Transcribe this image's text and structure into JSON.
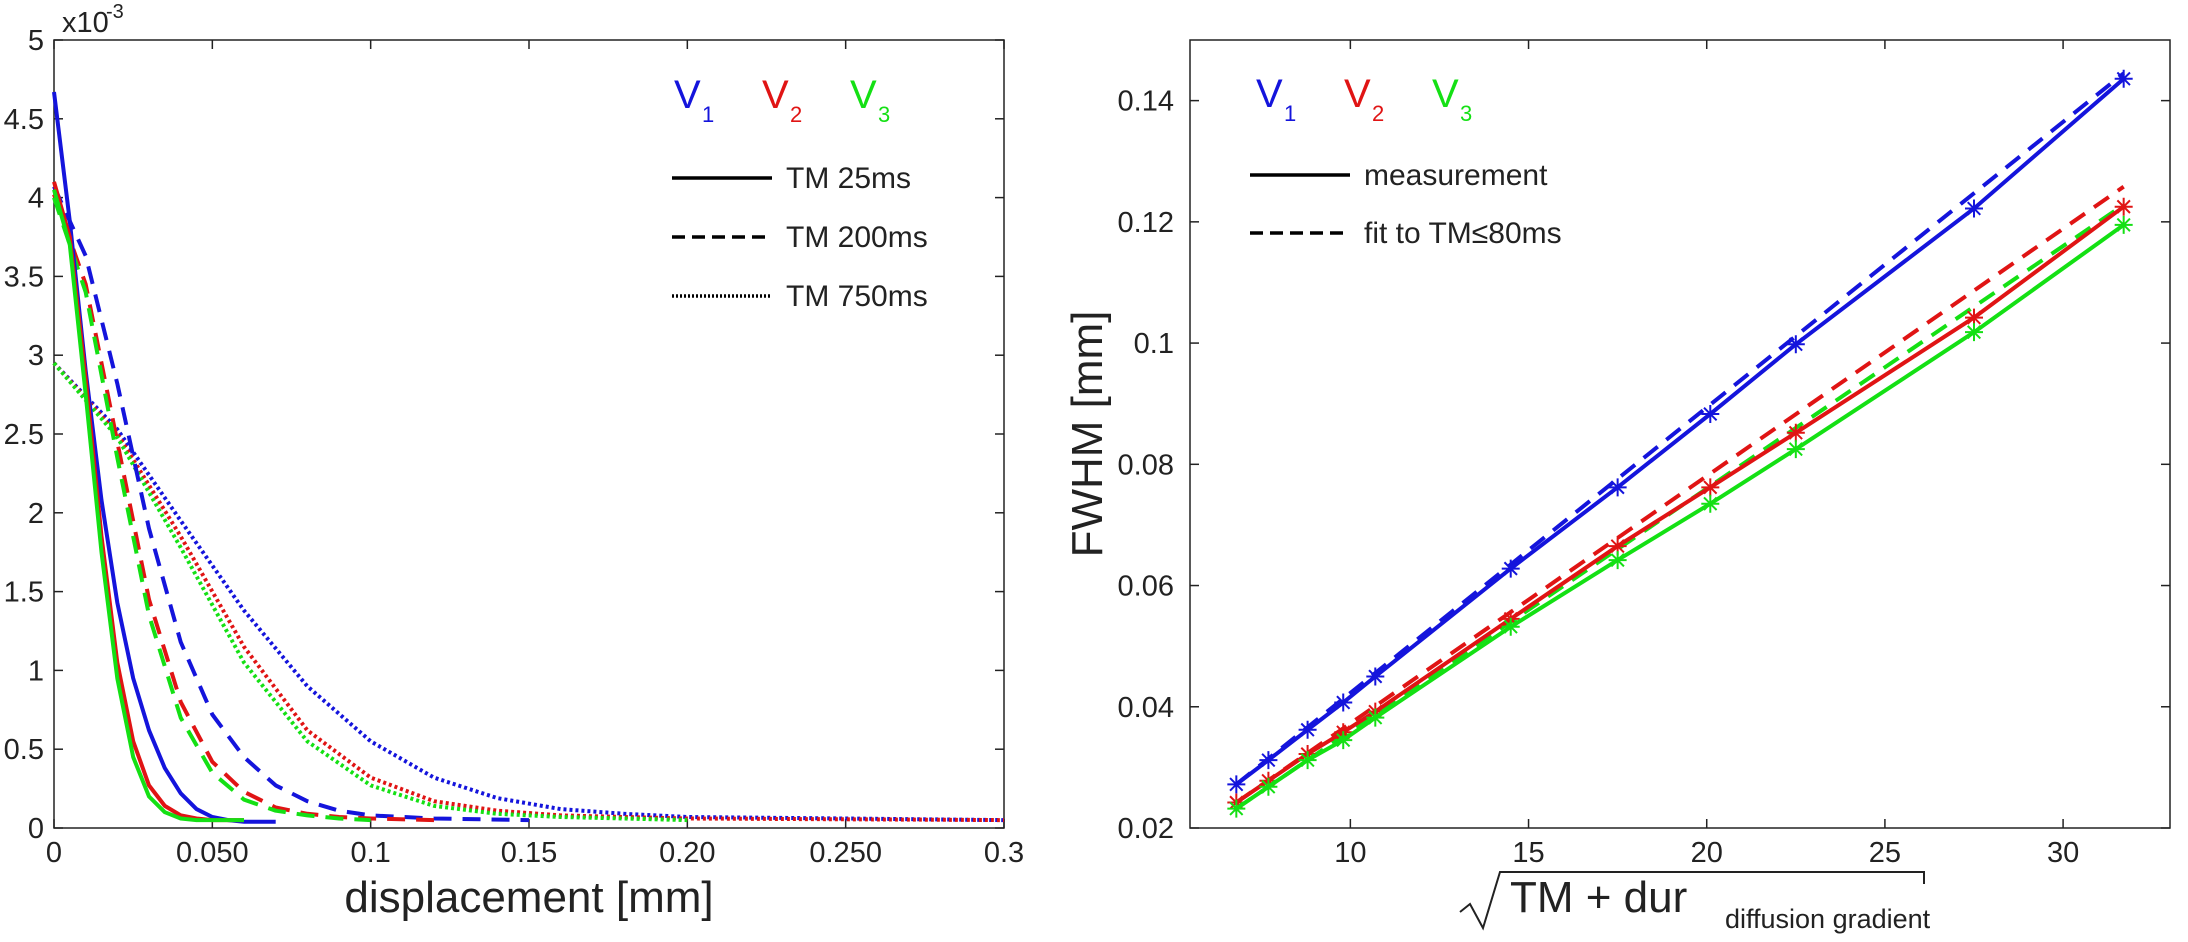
{
  "chart_data": [
    {
      "type": "line",
      "xlabel": "displacement [mm]",
      "ylabel": "",
      "y_scale_label": "x10",
      "y_scale_exponent": "-3",
      "xlim": [
        0,
        0.3
      ],
      "ylim": [
        0,
        5
      ],
      "x_ticks": [
        0,
        0.05,
        0.1,
        0.15,
        0.2,
        0.25,
        0.3
      ],
      "x_tick_labels": [
        "0",
        "0.050",
        "0.1",
        "0.15",
        "0.20",
        "0.250",
        "0.3"
      ],
      "y_ticks": [
        0,
        0.5,
        1,
        1.5,
        2,
        2.5,
        3,
        3.5,
        4,
        4.5,
        5
      ],
      "y_tick_labels": [
        "0",
        "0.5",
        "1",
        "1.5",
        "2",
        "2.5",
        "3",
        "3.5",
        "4",
        "4.5",
        "5"
      ],
      "legend_position": "top-right",
      "vector_legend": [
        {
          "letter": "V",
          "sub": "1",
          "color": "#1414dc"
        },
        {
          "letter": "V",
          "sub": "2",
          "color": "#e01414"
        },
        {
          "letter": "V",
          "sub": "3",
          "color": "#14e014"
        }
      ],
      "style_legend": [
        {
          "label": "TM 25ms",
          "dash": "solid"
        },
        {
          "label": "TM 200ms",
          "dash": "dashed"
        },
        {
          "label": "TM 750ms",
          "dash": "dotted"
        }
      ],
      "series": [
        {
          "name": "V1 TM 25ms",
          "color": "#1414dc",
          "dash": "solid",
          "x": [
            0,
            0.005,
            0.01,
            0.015,
            0.02,
            0.025,
            0.03,
            0.035,
            0.04,
            0.045,
            0.05,
            0.055,
            0.06,
            0.07
          ],
          "y": [
            4.67,
            3.85,
            2.9,
            2.08,
            1.43,
            0.95,
            0.62,
            0.38,
            0.22,
            0.12,
            0.07,
            0.05,
            0.04,
            0.04
          ]
        },
        {
          "name": "V2 TM 25ms",
          "color": "#e01414",
          "dash": "solid",
          "x": [
            0,
            0.005,
            0.01,
            0.015,
            0.02,
            0.025,
            0.03,
            0.035,
            0.04,
            0.045,
            0.05,
            0.06
          ],
          "y": [
            4.1,
            3.75,
            2.85,
            1.85,
            1.05,
            0.55,
            0.27,
            0.14,
            0.08,
            0.06,
            0.05,
            0.05
          ]
        },
        {
          "name": "V3 TM 25ms",
          "color": "#14e014",
          "dash": "solid",
          "x": [
            0,
            0.005,
            0.01,
            0.015,
            0.02,
            0.025,
            0.03,
            0.035,
            0.04,
            0.045,
            0.05,
            0.06
          ],
          "y": [
            4.05,
            3.7,
            2.75,
            1.75,
            0.95,
            0.45,
            0.2,
            0.1,
            0.06,
            0.05,
            0.05,
            0.05
          ]
        },
        {
          "name": "V1 TM 200ms",
          "color": "#1414dc",
          "dash": "dashed",
          "x": [
            0,
            0.01,
            0.02,
            0.03,
            0.04,
            0.05,
            0.06,
            0.07,
            0.08,
            0.09,
            0.1,
            0.12,
            0.15
          ],
          "y": [
            4.07,
            3.63,
            2.82,
            1.9,
            1.18,
            0.72,
            0.45,
            0.27,
            0.17,
            0.11,
            0.08,
            0.06,
            0.05
          ]
        },
        {
          "name": "V2 TM 200ms",
          "color": "#e01414",
          "dash": "dashed",
          "x": [
            0,
            0.01,
            0.02,
            0.03,
            0.04,
            0.05,
            0.06,
            0.07,
            0.08,
            0.09,
            0.1,
            0.12
          ],
          "y": [
            4.02,
            3.45,
            2.45,
            1.45,
            0.8,
            0.42,
            0.23,
            0.13,
            0.09,
            0.07,
            0.06,
            0.05
          ]
        },
        {
          "name": "V3 TM 200ms",
          "color": "#14e014",
          "dash": "dashed",
          "x": [
            0,
            0.01,
            0.02,
            0.03,
            0.04,
            0.05,
            0.06,
            0.07,
            0.08,
            0.09,
            0.1
          ],
          "y": [
            4.0,
            3.4,
            2.35,
            1.35,
            0.7,
            0.35,
            0.18,
            0.11,
            0.08,
            0.06,
            0.05
          ]
        },
        {
          "name": "V1 TM 750ms",
          "color": "#1414dc",
          "dash": "dotted",
          "x": [
            0,
            0.02,
            0.04,
            0.06,
            0.08,
            0.1,
            0.12,
            0.14,
            0.16,
            0.18,
            0.2,
            0.25,
            0.3
          ],
          "y": [
            2.95,
            2.53,
            1.95,
            1.38,
            0.9,
            0.55,
            0.32,
            0.19,
            0.12,
            0.09,
            0.07,
            0.06,
            0.05
          ]
        },
        {
          "name": "V2 TM 750ms",
          "color": "#e01414",
          "dash": "dotted",
          "x": [
            0,
            0.02,
            0.04,
            0.06,
            0.08,
            0.1,
            0.12,
            0.14,
            0.16,
            0.18,
            0.2,
            0.3
          ],
          "y": [
            2.95,
            2.5,
            1.85,
            1.15,
            0.62,
            0.32,
            0.17,
            0.11,
            0.08,
            0.07,
            0.06,
            0.05
          ]
        },
        {
          "name": "V3 TM 750ms",
          "color": "#14e014",
          "dash": "dotted",
          "x": [
            0,
            0.02,
            0.04,
            0.06,
            0.08,
            0.1,
            0.12,
            0.14,
            0.16,
            0.18,
            0.2
          ],
          "y": [
            2.95,
            2.48,
            1.78,
            1.05,
            0.55,
            0.27,
            0.14,
            0.09,
            0.07,
            0.06,
            0.05
          ]
        }
      ]
    },
    {
      "type": "line",
      "xlabel_main": "TM + dur",
      "xlabel_sub": "diffusion gradient",
      "ylabel": "FWHM [mm]",
      "xlim": [
        5.5,
        33
      ],
      "ylim": [
        0.02,
        0.15
      ],
      "x_ticks": [
        10,
        15,
        20,
        25,
        30
      ],
      "x_tick_labels": [
        "10",
        "15",
        "20",
        "25",
        "30"
      ],
      "y_ticks": [
        0.02,
        0.04,
        0.06,
        0.08,
        0.1,
        0.12,
        0.14
      ],
      "y_tick_labels": [
        "0.02",
        "0.04",
        "0.06",
        "0.08",
        "0.1",
        "0.12",
        "0.14"
      ],
      "legend_position": "top-left",
      "vector_legend": [
        {
          "letter": "V",
          "sub": "1",
          "color": "#1414dc"
        },
        {
          "letter": "V",
          "sub": "2",
          "color": "#e01414"
        },
        {
          "letter": "V",
          "sub": "3",
          "color": "#14e014"
        }
      ],
      "style_legend": [
        {
          "label": "measurement",
          "dash": "solid"
        },
        {
          "label": "fit to TM≤80ms",
          "dash": "dashed"
        }
      ],
      "x": [
        6.8,
        7.7,
        8.8,
        9.8,
        10.7,
        14.5,
        17.5,
        20.1,
        22.5,
        27.5,
        31.7
      ],
      "series": [
        {
          "name": "V1 measurement",
          "color": "#1414dc",
          "dash": "solid",
          "marker": "*",
          "y": [
            0.0272,
            0.0312,
            0.0362,
            0.0407,
            0.045,
            0.0628,
            0.0762,
            0.0883,
            0.0998,
            0.1222,
            0.1436
          ]
        },
        {
          "name": "V2 measurement",
          "color": "#e01414",
          "dash": "solid",
          "marker": "*",
          "y": [
            0.0242,
            0.0278,
            0.0322,
            0.0358,
            0.0392,
            0.0545,
            0.0665,
            0.0762,
            0.0852,
            0.1042,
            0.1225
          ]
        },
        {
          "name": "V3 measurement",
          "color": "#14e014",
          "dash": "solid",
          "marker": "*",
          "y": [
            0.0232,
            0.0268,
            0.0312,
            0.0345,
            0.0382,
            0.0532,
            0.0642,
            0.0735,
            0.0825,
            0.1018,
            0.1195
          ]
        },
        {
          "name": "V1 fit",
          "color": "#1414dc",
          "dash": "dashed",
          "x_line": [
            6.8,
            31.7
          ],
          "y_line": [
            0.0272,
            0.1445
          ]
        },
        {
          "name": "V2 fit",
          "color": "#e01414",
          "dash": "dashed",
          "x_line": [
            6.8,
            31.7
          ],
          "y_line": [
            0.0242,
            0.1258
          ]
        },
        {
          "name": "V3 fit",
          "color": "#14e014",
          "dash": "dashed",
          "x_line": [
            6.8,
            31.7
          ],
          "y_line": [
            0.0232,
            0.1228
          ]
        }
      ]
    }
  ]
}
